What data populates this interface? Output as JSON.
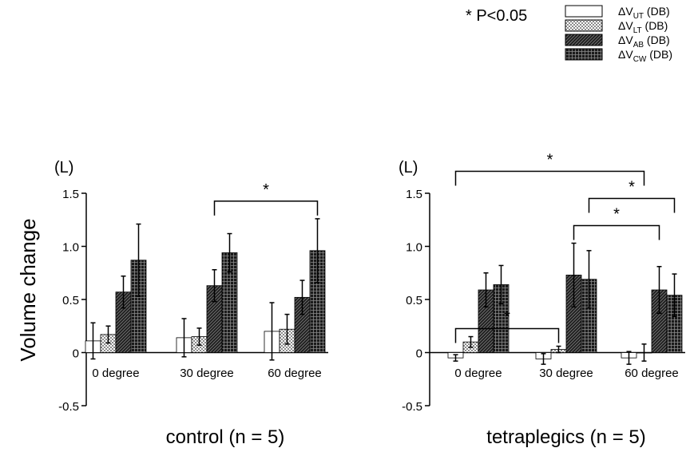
{
  "figure": {
    "ylabel": "Volume change",
    "sig_legend": "* P<0.05",
    "legend": [
      {
        "base": "ΔV",
        "sub": "UT",
        "suffix": " (DB)",
        "fill": "white"
      },
      {
        "base": "ΔV",
        "sub": "LT",
        "suffix": " (DB)",
        "fill": "dots"
      },
      {
        "base": "ΔV",
        "sub": "AB",
        "suffix": " (DB)",
        "fill": "diag"
      },
      {
        "base": "ΔV",
        "sub": "CW",
        "suffix": " (DB)",
        "fill": "grid"
      }
    ]
  },
  "chart_data": [
    {
      "type": "bar",
      "title": "control (n = 5)",
      "unit_label": "(L)",
      "categories": [
        "0 degree",
        "30 degree",
        "60 degree"
      ],
      "ylim": [
        -0.5,
        1.5
      ],
      "yticks": [
        "-0.5",
        "0",
        "0.5",
        "1.0",
        "1.5"
      ],
      "series": [
        {
          "name": "ΔVUT (DB)",
          "values": [
            0.11,
            0.14,
            0.2
          ],
          "errors": [
            0.17,
            0.18,
            0.27
          ]
        },
        {
          "name": "ΔVLT (DB)",
          "values": [
            0.17,
            0.15,
            0.22
          ],
          "errors": [
            0.08,
            0.08,
            0.14
          ]
        },
        {
          "name": "ΔVAB (DB)",
          "values": [
            0.57,
            0.63,
            0.52
          ],
          "errors": [
            0.15,
            0.15,
            0.16
          ]
        },
        {
          "name": "ΔVCW (DB)",
          "values": [
            0.87,
            0.94,
            0.96
          ],
          "errors": [
            0.34,
            0.18,
            0.3
          ]
        }
      ],
      "significance": [
        {
          "label": "*",
          "from": [
            1,
            2
          ],
          "to": [
            2,
            3
          ]
        }
      ]
    },
    {
      "type": "bar",
      "title": "tetraplegics (n = 5)",
      "unit_label": "(L)",
      "categories": [
        "0 degree",
        "30 degree",
        "60 degree"
      ],
      "ylim": [
        -0.5,
        1.5
      ],
      "yticks": [
        "-0.5",
        "0",
        "0.5",
        "1.0",
        "1.5"
      ],
      "series": [
        {
          "name": "ΔVUT (DB)",
          "values": [
            -0.05,
            -0.06,
            -0.05
          ],
          "errors": [
            0.03,
            0.05,
            0.06
          ]
        },
        {
          "name": "ΔVLT (DB)",
          "values": [
            0.1,
            0.03,
            0.0
          ],
          "errors": [
            0.05,
            0.03,
            0.08
          ]
        },
        {
          "name": "ΔVAB (DB)",
          "values": [
            0.59,
            0.73,
            0.59
          ],
          "errors": [
            0.16,
            0.3,
            0.22
          ]
        },
        {
          "name": "ΔVCW (DB)",
          "values": [
            0.64,
            0.69,
            0.54
          ],
          "errors": [
            0.18,
            0.27,
            0.2
          ]
        }
      ],
      "significance": [
        {
          "label": "*",
          "from": [
            0,
            0
          ],
          "to": [
            1,
            1
          ]
        },
        {
          "label": "*",
          "from": [
            0,
            0
          ],
          "to": [
            2,
            1
          ]
        },
        {
          "label": "*",
          "from": [
            1,
            2
          ],
          "to": [
            2,
            2
          ]
        },
        {
          "label": "*",
          "from": [
            1,
            3
          ],
          "to": [
            2,
            3
          ]
        }
      ]
    }
  ]
}
